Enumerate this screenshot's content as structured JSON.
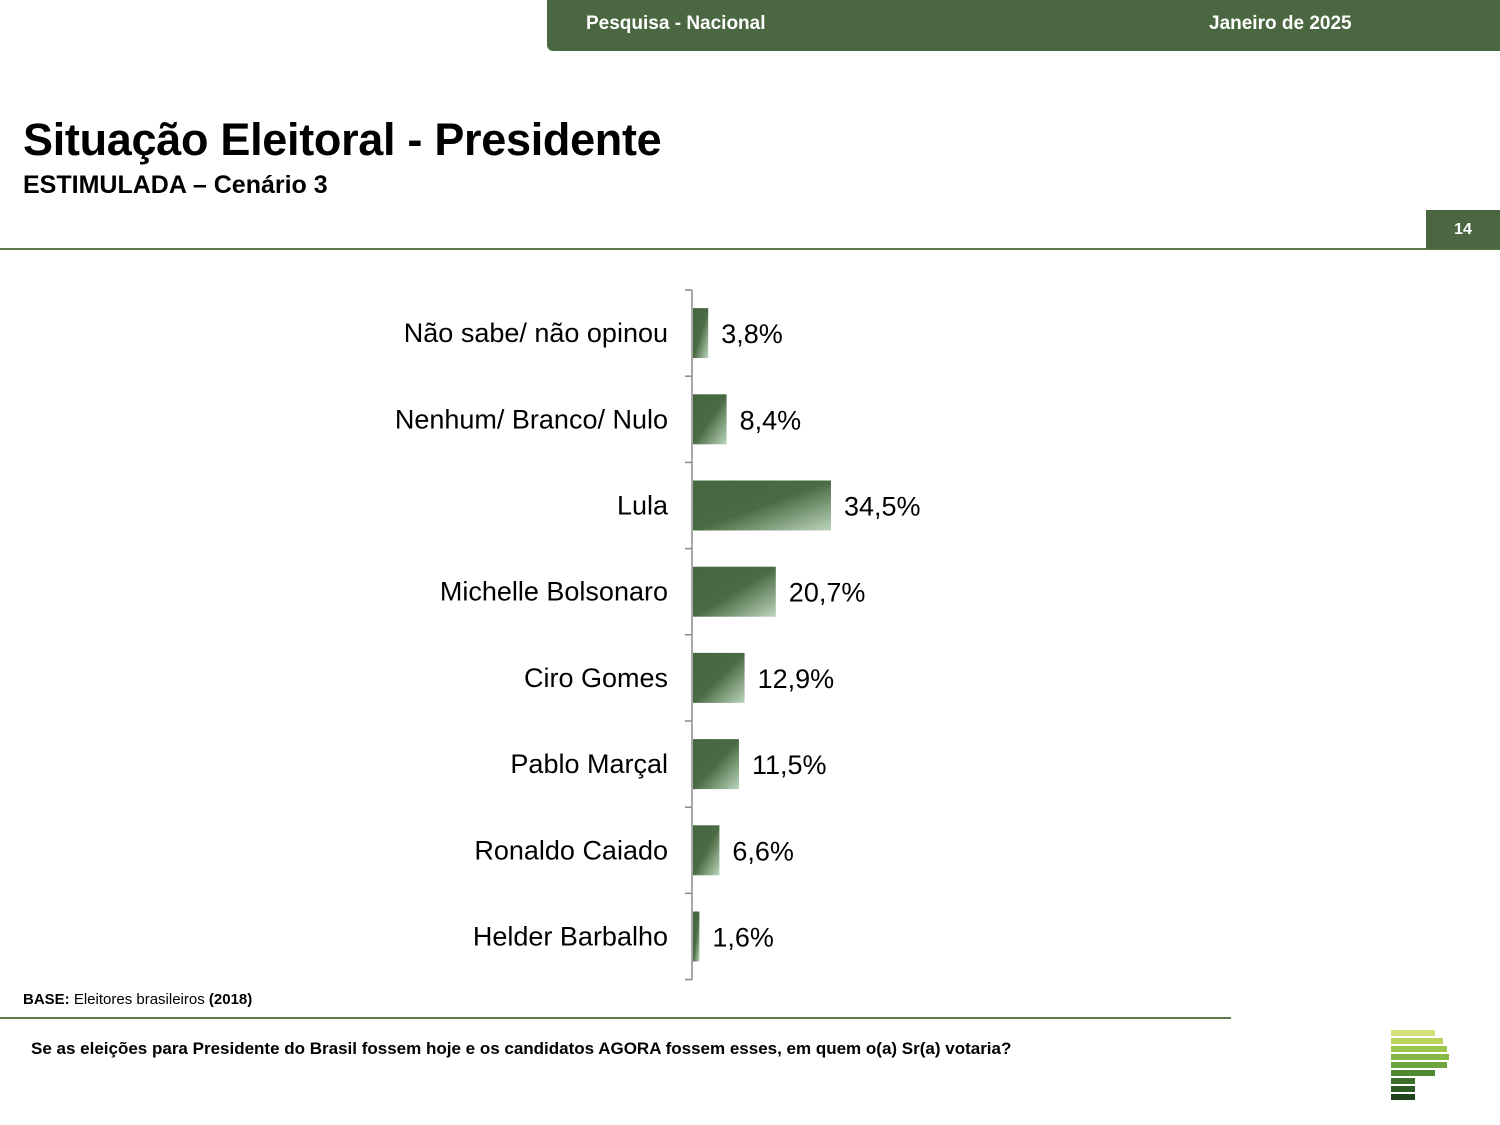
{
  "header": {
    "left_label": "Pesquisa - Nacional",
    "right_label": "Janeiro de 2025"
  },
  "page": {
    "title": "Situação Eleitoral - Presidente",
    "subtitle": "ESTIMULADA – Cenário 3",
    "page_number": "14"
  },
  "colors": {
    "brand_dark": "#4a6741",
    "bar_dark": "#466640",
    "bar_light": "#bcd6bc"
  },
  "chart_data": {
    "type": "bar",
    "orientation": "horizontal",
    "categories": [
      "Não sabe/ não opinou",
      "Nenhum/ Branco/ Nulo",
      "Lula",
      "Michelle Bolsonaro",
      "Ciro Gomes",
      "Pablo Marçal",
      "Ronaldo Caiado",
      "Helder Barbalho"
    ],
    "values": [
      3.8,
      8.4,
      34.5,
      20.7,
      12.9,
      11.5,
      6.6,
      1.6
    ],
    "value_labels": [
      "3,8%",
      "8,4%",
      "34,5%",
      "20,7%",
      "12,9%",
      "11,5%",
      "6,6%",
      "1,6%"
    ],
    "xlim": [
      0,
      100
    ],
    "grid": false,
    "legend": "none"
  },
  "footer": {
    "base_label": "BASE:",
    "base_text": " Eleitores brasileiros ",
    "base_year": "(2018)",
    "question": "Se as eleições para Presidente do Brasil fossem hoje e os candidatos AGORA fossem esses, em quem o(a) Sr(a) votaria?",
    "logo_icon": "stacked-bars-logo-icon"
  }
}
